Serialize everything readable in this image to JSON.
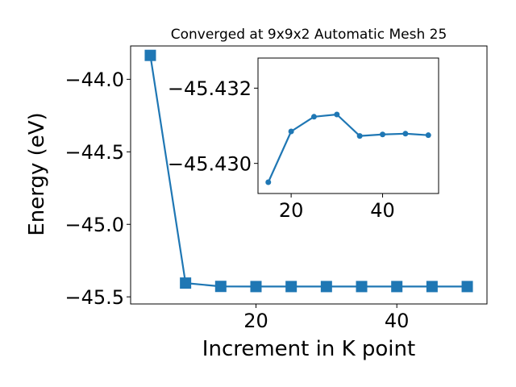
{
  "chart_data": [
    {
      "type": "line",
      "title": "Converged at 9x9x2 Automatic Mesh 25",
      "xlabel": "Increment in K point",
      "ylabel": "Energy (eV)",
      "xlim": [
        2.2,
        52.8
      ],
      "ylim": [
        -45.549,
        -43.77
      ],
      "xticks": [
        20,
        40
      ],
      "yticks": [
        -44.0,
        -44.5,
        -45.0,
        -45.5
      ],
      "ytick_labels": [
        "−44.0",
        "−44.5",
        "−45.0",
        "−45.5"
      ],
      "grid": false,
      "marker": "square",
      "color": "#1f77b4",
      "series": [
        {
          "x": [
            5,
            10,
            15,
            20,
            25,
            30,
            35,
            40,
            45,
            50
          ],
          "y": [
            -43.835,
            -45.405,
            -45.428,
            -45.429,
            -45.429,
            -45.429,
            -45.429,
            -45.429,
            -45.429,
            -45.429
          ]
        }
      ]
    },
    {
      "type": "line",
      "inset": true,
      "xlim": [
        12.75,
        52.25
      ],
      "ylim": [
        -45.4292,
        -45.4328
      ],
      "xticks": [
        20,
        40
      ],
      "yticks": [
        -45.432,
        -45.43
      ],
      "ytick_labels": [
        "−45.432",
        "−45.430"
      ],
      "grid": false,
      "marker": "circle",
      "color": "#1f77b4",
      "series": [
        {
          "x": [
            15,
            20,
            25,
            30,
            35,
            40,
            45,
            50
          ],
          "y": [
            -45.4295,
            -45.43085,
            -45.43124,
            -45.4313,
            -45.43073,
            -45.43077,
            -45.43079,
            -45.43075
          ]
        }
      ]
    }
  ]
}
